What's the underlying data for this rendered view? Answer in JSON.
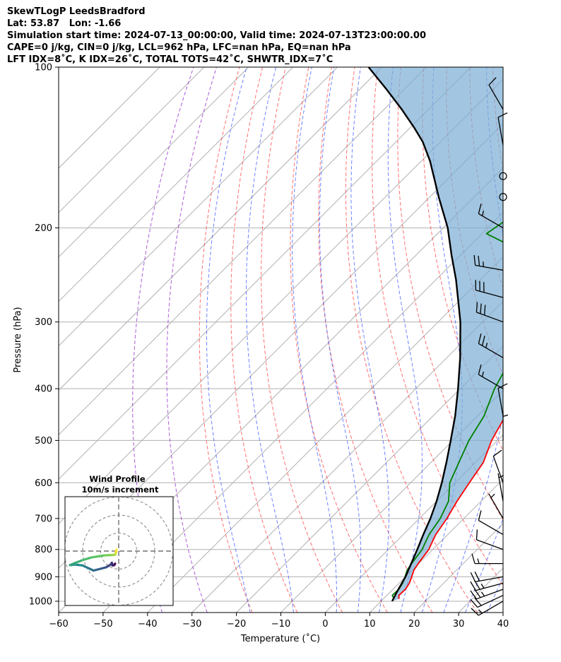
{
  "chart_data": {
    "type": "line",
    "title_lines": [
      "SkewTLogP LeedsBradford",
      "Lat: 53.87   Lon: -1.66",
      "Simulation start time: 2024-07-13_00:00:00, Valid time: 2024-07-13T23:00:00.00",
      "CAPE=0 j/kg, CIN=0 j/kg, LCL=962 hPa, LFC=nan hPa, EQ=nan hPa",
      "LFT IDX=8˚C, K IDX=26˚C, TOTAL TOTS=42˚C, SHWTR_IDX=7˚C"
    ],
    "xlabel": "Temperature (˚C)",
    "ylabel": "Pressure (hPa)",
    "xlim": [
      -60,
      40
    ],
    "ylim": [
      1050,
      100
    ],
    "x_ticks": [
      -60,
      -50,
      -40,
      -30,
      -20,
      -10,
      0,
      10,
      20,
      30,
      40
    ],
    "x_tick_labels": [
      "−60",
      "−50",
      "−40",
      "−30",
      "−20",
      "−10",
      "0",
      "10",
      "20",
      "30",
      "40"
    ],
    "y_ticks": [
      1000,
      900,
      800,
      700,
      600,
      500,
      400,
      300,
      200,
      100
    ],
    "y_tick_labels": [
      "1000",
      "900",
      "800",
      "700",
      "600",
      "500",
      "400",
      "300",
      "200",
      "100"
    ],
    "series": [
      {
        "name": "Temperature",
        "color": "#ff0000",
        "points": [
          [
            13.5,
            990
          ],
          [
            12.7,
            975
          ],
          [
            12.8,
            950
          ],
          [
            12.3,
            925
          ],
          [
            11.4,
            900
          ],
          [
            10.4,
            875
          ],
          [
            9.9,
            850
          ],
          [
            9.5,
            825
          ],
          [
            9.1,
            800
          ],
          [
            8.2,
            775
          ],
          [
            7.3,
            750
          ],
          [
            6.2,
            700
          ],
          [
            4.6,
            650
          ],
          [
            3.2,
            600
          ],
          [
            1.8,
            550
          ],
          [
            -1.3,
            500
          ],
          [
            -3.7,
            450
          ],
          [
            -6.1,
            400
          ],
          [
            -9.2,
            350
          ],
          [
            -12.5,
            300
          ],
          [
            -16.5,
            270
          ],
          [
            -19.4,
            250
          ],
          [
            -21.8,
            245
          ],
          [
            -19.8,
            230
          ],
          [
            -17.0,
            215
          ],
          [
            -15.5,
            200
          ],
          [
            -17.5,
            180
          ],
          [
            -17.0,
            160
          ],
          [
            -17.6,
            150
          ],
          [
            -18.1,
            140
          ],
          [
            -16.8,
            125
          ],
          [
            -15.6,
            115
          ],
          [
            -15.2,
            110
          ],
          [
            -14.6,
            100
          ]
        ]
      },
      {
        "name": "Dewpoint",
        "color": "#008000",
        "points": [
          [
            12.0,
            985
          ],
          [
            11.2,
            975
          ],
          [
            11.3,
            950
          ],
          [
            10.8,
            925
          ],
          [
            9.9,
            900
          ],
          [
            8.9,
            875
          ],
          [
            8.4,
            850
          ],
          [
            8.0,
            825
          ],
          [
            7.6,
            800
          ],
          [
            6.7,
            775
          ],
          [
            5.8,
            750
          ],
          [
            4.7,
            700
          ],
          [
            2.7,
            650
          ],
          [
            -1.2,
            600
          ],
          [
            -3.7,
            550
          ],
          [
            -6.4,
            500
          ],
          [
            -8.5,
            450
          ],
          [
            -12.3,
            400
          ],
          [
            -15.4,
            350
          ],
          [
            -18.6,
            330
          ],
          [
            -21.0,
            300
          ],
          [
            -23.5,
            270
          ],
          [
            -26.0,
            240
          ],
          [
            -28.3,
            232
          ],
          [
            -38.0,
            220
          ],
          [
            -49.0,
            205
          ],
          [
            -46.0,
            180
          ],
          [
            -42.0,
            160
          ],
          [
            -41.0,
            150
          ],
          [
            -39.0,
            140
          ],
          [
            -37.5,
            125
          ],
          [
            -36.5,
            110
          ],
          [
            -35.4,
            100
          ]
        ]
      },
      {
        "name": "Parcel",
        "color": "#000000",
        "points": [
          [
            12.5,
            1000
          ],
          [
            11.5,
            962
          ],
          [
            10.0,
            900
          ],
          [
            8.3,
            850
          ],
          [
            6.5,
            800
          ],
          [
            4.5,
            750
          ],
          [
            2.5,
            700
          ],
          [
            0.0,
            650
          ],
          [
            -3.0,
            600
          ],
          [
            -6.5,
            550
          ],
          [
            -10.5,
            500
          ],
          [
            -15.0,
            450
          ],
          [
            -20.5,
            400
          ],
          [
            -27.0,
            350
          ],
          [
            -35.0,
            300
          ],
          [
            -40.0,
            275
          ],
          [
            -45.5,
            250
          ],
          [
            -52.0,
            225
          ],
          [
            -59.0,
            200
          ],
          [
            -68.0,
            175
          ],
          [
            -78.0,
            150
          ],
          [
            -84.0,
            138
          ],
          [
            -89.0,
            130
          ],
          [
            -96.0,
            120
          ],
          [
            -104.0,
            110
          ],
          [
            -113.0,
            100
          ]
        ]
      }
    ],
    "shaded_region": {
      "between": [
        "Parcel",
        "Temperature"
      ],
      "color": "#7aaed4"
    },
    "dry_adiabats_theta_C": [
      -20,
      -10,
      0,
      10,
      20,
      30,
      40,
      50,
      60,
      70,
      80,
      90,
      100,
      110,
      120,
      130,
      140
    ],
    "moist_adiabats_C": [
      -20,
      -10,
      0,
      5,
      10,
      15,
      20,
      25,
      30,
      35,
      40
    ],
    "mixing_ratio_lines": [
      0.4,
      1,
      2,
      3,
      5,
      8,
      12,
      16,
      20
    ],
    "wind_barbs": [
      {
        "p": 1000,
        "kt": 15,
        "dir": 240
      },
      {
        "p": 975,
        "kt": 20,
        "dir": 245
      },
      {
        "p": 950,
        "kt": 25,
        "dir": 250
      },
      {
        "p": 925,
        "kt": 25,
        "dir": 255
      },
      {
        "p": 900,
        "kt": 20,
        "dir": 260
      },
      {
        "p": 850,
        "kt": 15,
        "dir": 270
      },
      {
        "p": 800,
        "kt": 10,
        "dir": 290
      },
      {
        "p": 750,
        "kt": 10,
        "dir": 300
      },
      {
        "p": 700,
        "kt": 5,
        "dir": 330
      },
      {
        "p": 650,
        "kt": 5,
        "dir": 350
      },
      {
        "p": 600,
        "kt": 10,
        "dir": 340
      },
      {
        "p": 500,
        "kt": 5,
        "dir": 360
      },
      {
        "p": 450,
        "kt": 10,
        "dir": 350
      },
      {
        "p": 400,
        "kt": 15,
        "dir": 300
      },
      {
        "p": 350,
        "kt": 25,
        "dir": 300
      },
      {
        "p": 300,
        "kt": 30,
        "dir": 290
      },
      {
        "p": 270,
        "kt": 30,
        "dir": 285
      },
      {
        "p": 240,
        "kt": 25,
        "dir": 280
      },
      {
        "p": 200,
        "kt": 15,
        "dir": 300
      },
      {
        "p": 175,
        "kt": 0,
        "dir": 0
      },
      {
        "p": 160,
        "kt": 0,
        "dir": 0
      },
      {
        "p": 140,
        "kt": 10,
        "dir": 350
      },
      {
        "p": 120,
        "kt": 10,
        "dir": 330
      }
    ],
    "hodograph": {
      "title": "Wind Profile",
      "subtitle": "10m/s increment",
      "rings_ms": [
        10,
        20,
        30
      ],
      "points": [
        [
          -2.0,
          -7.0
        ],
        [
          -2.5,
          -7.8
        ],
        [
          -3.4,
          -8.0
        ],
        [
          -3.8,
          -6.5
        ],
        [
          -4.6,
          -7.6
        ],
        [
          -7.0,
          -9.0
        ],
        [
          -10.0,
          -9.8
        ],
        [
          -14.0,
          -10.8
        ],
        [
          -17.0,
          -9.4
        ],
        [
          -20.0,
          -8.0
        ],
        [
          -24.0,
          -7.5
        ],
        [
          -27.0,
          -7.8
        ],
        [
          -24.0,
          -6.5
        ],
        [
          -20.0,
          -5.0
        ],
        [
          -15.0,
          -3.5
        ],
        [
          -8.0,
          -2.4
        ],
        [
          -4.0,
          -2.2
        ],
        [
          -2.0,
          -2.0
        ],
        [
          -1.6,
          -1.0
        ],
        [
          -1.4,
          0.0
        ],
        [
          -1.2,
          0.8
        ]
      ]
    }
  }
}
